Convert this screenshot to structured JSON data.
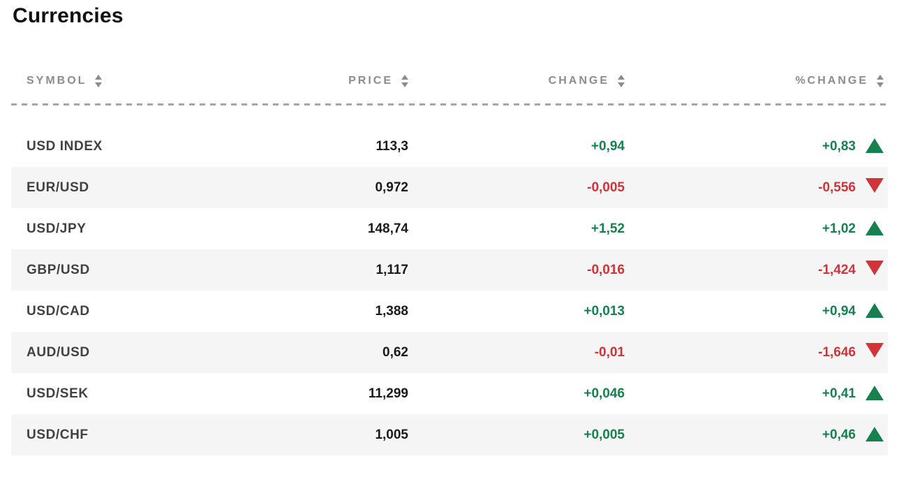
{
  "page": {
    "title": "Currencies"
  },
  "colors": {
    "positive": "#16804e",
    "negative": "#d03338",
    "header_text": "#8c8c8c",
    "divider": "#a6a6a6",
    "row_alt_bg": "#f5f5f5",
    "symbol_text": "#414141",
    "price_text": "#1a1a1a",
    "title_text": "#111111"
  },
  "table": {
    "columns": [
      {
        "key": "symbol",
        "label": "SYMBOL",
        "sortable": true
      },
      {
        "key": "price",
        "label": "PRICE",
        "sortable": true
      },
      {
        "key": "change",
        "label": "CHANGE",
        "sortable": true
      },
      {
        "key": "pct_change",
        "label": "%CHANGE",
        "sortable": true
      }
    ],
    "rows": [
      {
        "symbol": "USD INDEX",
        "price": "113,3",
        "change": "+0,94",
        "pct_change": "+0,83",
        "direction": "up"
      },
      {
        "symbol": "EUR/USD",
        "price": "0,972",
        "change": "-0,005",
        "pct_change": "-0,556",
        "direction": "down"
      },
      {
        "symbol": "USD/JPY",
        "price": "148,74",
        "change": "+1,52",
        "pct_change": "+1,02",
        "direction": "up"
      },
      {
        "symbol": "GBP/USD",
        "price": "1,117",
        "change": "-0,016",
        "pct_change": "-1,424",
        "direction": "down"
      },
      {
        "symbol": "USD/CAD",
        "price": "1,388",
        "change": "+0,013",
        "pct_change": "+0,94",
        "direction": "up"
      },
      {
        "symbol": "AUD/USD",
        "price": "0,62",
        "change": "-0,01",
        "pct_change": "-1,646",
        "direction": "down"
      },
      {
        "symbol": "USD/SEK",
        "price": "11,299",
        "change": "+0,046",
        "pct_change": "+0,41",
        "direction": "up"
      },
      {
        "symbol": "USD/CHF",
        "price": "1,005",
        "change": "+0,005",
        "pct_change": "+0,46",
        "direction": "up"
      }
    ]
  },
  "chart_data": {
    "type": "table",
    "title": "Currencies",
    "columns": [
      "SYMBOL",
      "PRICE",
      "CHANGE",
      "%CHANGE"
    ],
    "rows": [
      [
        "USD INDEX",
        "113,3",
        "+0,94",
        "+0,83"
      ],
      [
        "EUR/USD",
        "0,972",
        "-0,005",
        "-0,556"
      ],
      [
        "USD/JPY",
        "148,74",
        "+1,52",
        "+1,02"
      ],
      [
        "GBP/USD",
        "1,117",
        "-0,016",
        "-1,424"
      ],
      [
        "USD/CAD",
        "1,388",
        "+0,013",
        "+0,94"
      ],
      [
        "AUD/USD",
        "0,62",
        "-0,01",
        "-1,646"
      ],
      [
        "USD/SEK",
        "11,299",
        "+0,046",
        "+0,41"
      ],
      [
        "USD/CHF",
        "1,005",
        "+0,005",
        "+0,46"
      ]
    ],
    "directions": [
      "up",
      "down",
      "up",
      "down",
      "up",
      "down",
      "up",
      "up"
    ],
    "layout_hints": {
      "zebra_striping": true,
      "sortable_columns": true,
      "value_alignment": "right"
    }
  }
}
